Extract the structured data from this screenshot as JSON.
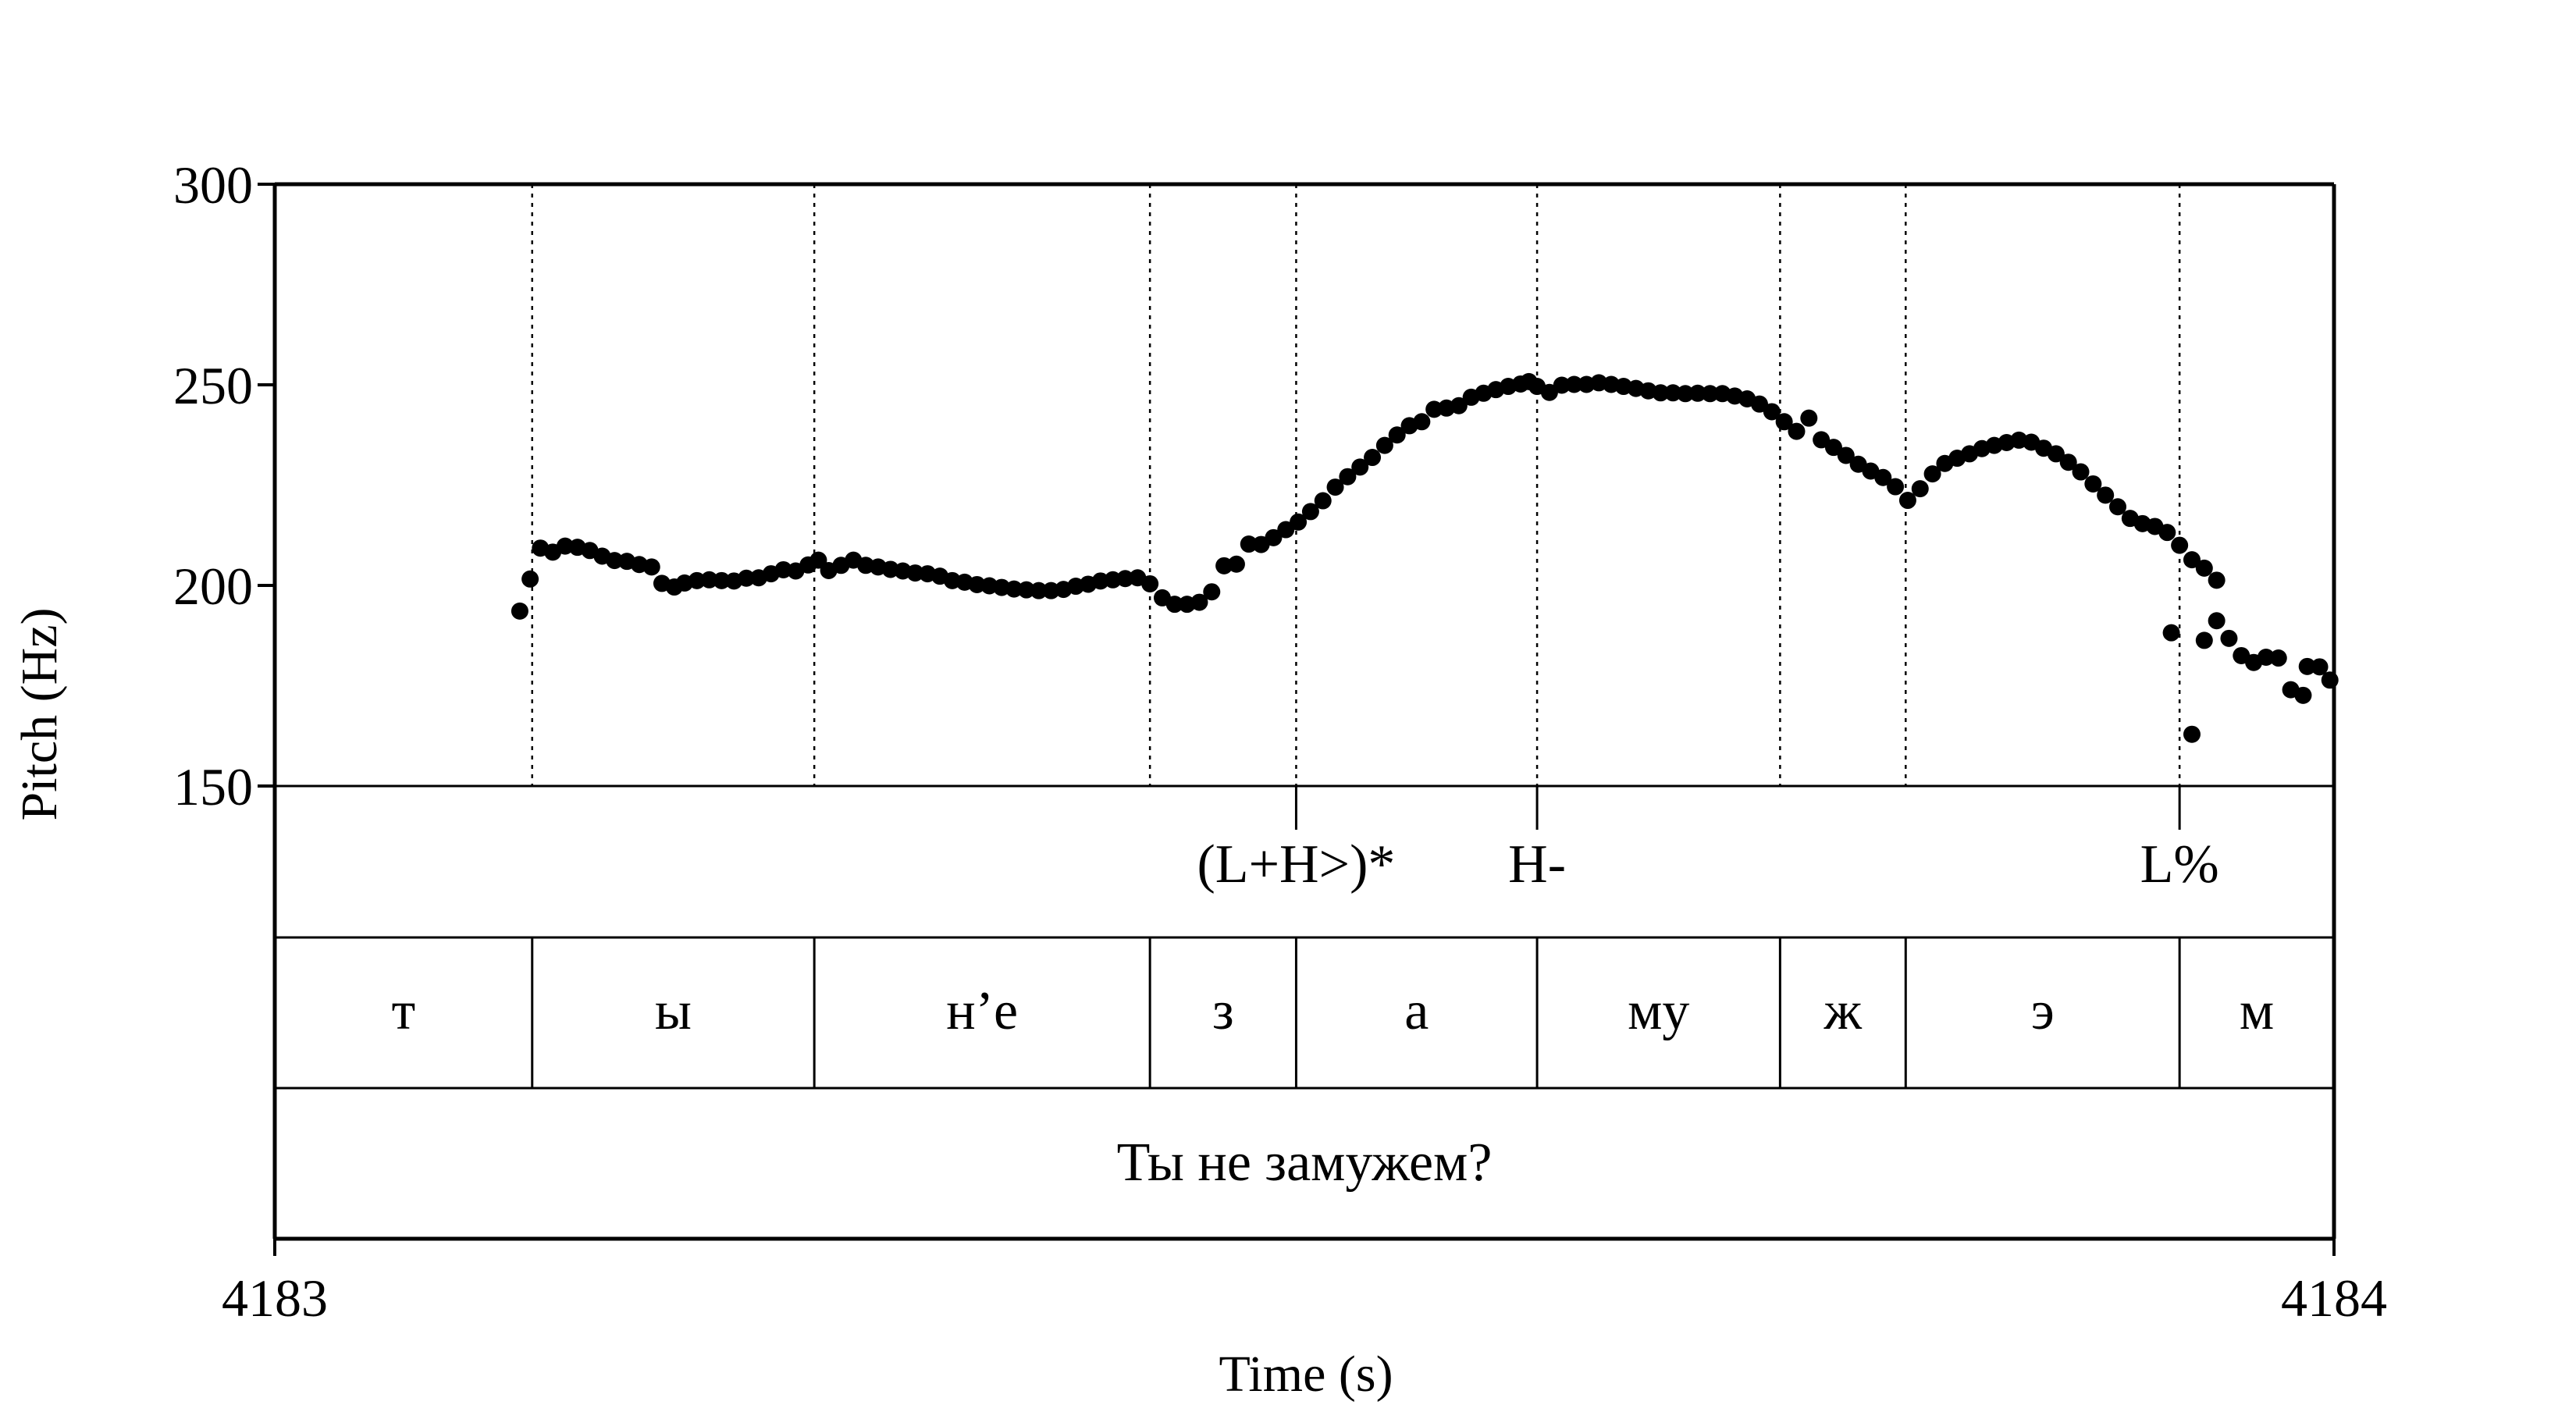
{
  "chart_data": {
    "type": "scatter",
    "ylabel": "Pitch (Hz)",
    "xlabel": "Time (s)",
    "xlim": [
      4183,
      4184
    ],
    "ylim": [
      150,
      300
    ],
    "yticks": [
      "150",
      "200",
      "250",
      "300"
    ],
    "xticks": [
      "4183",
      "4184"
    ],
    "grid": false,
    "marker_color": "#000000",
    "boundaries": [
      4183.125,
      4183.262,
      4183.425,
      4183.496,
      4183.613,
      4183.731,
      4183.792,
      4183.925
    ],
    "tone_tier": [
      {
        "t": 4183.496,
        "label": "(L+H>)*"
      },
      {
        "t": 4183.613,
        "label": "H-"
      },
      {
        "t": 4183.925,
        "label": "L%"
      }
    ],
    "segments": [
      {
        "start": 4183.0,
        "end": 4183.125,
        "label": "т"
      },
      {
        "start": 4183.125,
        "end": 4183.262,
        "label": "ы"
      },
      {
        "start": 4183.262,
        "end": 4183.425,
        "label": "н’е"
      },
      {
        "start": 4183.425,
        "end": 4183.496,
        "label": "з"
      },
      {
        "start": 4183.496,
        "end": 4183.613,
        "label": "а"
      },
      {
        "start": 4183.613,
        "end": 4183.731,
        "label": "му"
      },
      {
        "start": 4183.731,
        "end": 4183.792,
        "label": "ж"
      },
      {
        "start": 4183.792,
        "end": 4183.925,
        "label": "э"
      },
      {
        "start": 4183.925,
        "end": 4184.0,
        "label": "м"
      }
    ],
    "sentence": "Ты не замужем?",
    "points": [
      [
        4183.119,
        193.6
      ],
      [
        4183.124,
        201.6
      ],
      [
        4183.129,
        209.3
      ],
      [
        4183.135,
        208.3
      ],
      [
        4183.141,
        209.8
      ],
      [
        4183.147,
        209.5
      ],
      [
        4183.153,
        208.7
      ],
      [
        4183.159,
        207.3
      ],
      [
        4183.165,
        206.2
      ],
      [
        4183.171,
        206.0
      ],
      [
        4183.177,
        205.2
      ],
      [
        4183.183,
        204.6
      ],
      [
        4183.188,
        200.5
      ],
      [
        4183.194,
        199.6
      ],
      [
        4183.199,
        200.6
      ],
      [
        4183.205,
        201.2
      ],
      [
        4183.211,
        201.4
      ],
      [
        4183.217,
        201.2
      ],
      [
        4183.223,
        201.1
      ],
      [
        4183.229,
        201.8
      ],
      [
        4183.235,
        201.9
      ],
      [
        4183.241,
        202.9
      ],
      [
        4183.247,
        203.9
      ],
      [
        4183.253,
        203.6
      ],
      [
        4183.259,
        205.1
      ],
      [
        4183.264,
        206.3
      ],
      [
        4183.269,
        203.7
      ],
      [
        4183.275,
        205.0
      ],
      [
        4183.281,
        206.3
      ],
      [
        4183.287,
        205.0
      ],
      [
        4183.293,
        204.6
      ],
      [
        4183.299,
        204.0
      ],
      [
        4183.305,
        203.6
      ],
      [
        4183.311,
        203.1
      ],
      [
        4183.317,
        202.9
      ],
      [
        4183.323,
        202.3
      ],
      [
        4183.329,
        201.2
      ],
      [
        4183.335,
        200.8
      ],
      [
        4183.341,
        200.2
      ],
      [
        4183.347,
        199.9
      ],
      [
        4183.353,
        199.5
      ],
      [
        4183.359,
        199.1
      ],
      [
        4183.365,
        198.9
      ],
      [
        4183.371,
        198.7
      ],
      [
        4183.377,
        198.7
      ],
      [
        4183.383,
        199.0
      ],
      [
        4183.389,
        199.8
      ],
      [
        4183.395,
        200.3
      ],
      [
        4183.401,
        201.1
      ],
      [
        4183.407,
        201.4
      ],
      [
        4183.413,
        201.7
      ],
      [
        4183.419,
        201.9
      ],
      [
        4183.425,
        200.4
      ],
      [
        4183.431,
        196.9
      ],
      [
        4183.437,
        195.3
      ],
      [
        4183.443,
        195.3
      ],
      [
        4183.449,
        195.8
      ],
      [
        4183.455,
        198.4
      ],
      [
        4183.461,
        204.9
      ],
      [
        4183.467,
        205.3
      ],
      [
        4183.473,
        210.3
      ],
      [
        4183.479,
        210.2
      ],
      [
        4183.485,
        211.9
      ],
      [
        4183.491,
        213.9
      ],
      [
        4183.497,
        215.8
      ],
      [
        4183.503,
        218.4
      ],
      [
        4183.509,
        221.1
      ],
      [
        4183.515,
        224.5
      ],
      [
        4183.521,
        227.1
      ],
      [
        4183.527,
        229.5
      ],
      [
        4183.533,
        231.9
      ],
      [
        4183.539,
        234.9
      ],
      [
        4183.545,
        237.5
      ],
      [
        4183.551,
        239.8
      ],
      [
        4183.557,
        240.8
      ],
      [
        4183.563,
        243.9
      ],
      [
        4183.569,
        244.2
      ],
      [
        4183.575,
        244.8
      ],
      [
        4183.581,
        246.9
      ],
      [
        4183.587,
        247.9
      ],
      [
        4183.593,
        248.8
      ],
      [
        4183.599,
        249.6
      ],
      [
        4183.605,
        250.2
      ],
      [
        4183.609,
        250.8
      ],
      [
        4183.613,
        249.6
      ],
      [
        4183.619,
        248.1
      ],
      [
        4183.625,
        249.9
      ],
      [
        4183.631,
        250.1
      ],
      [
        4183.637,
        250.1
      ],
      [
        4183.643,
        250.5
      ],
      [
        4183.649,
        250.1
      ],
      [
        4183.655,
        249.6
      ],
      [
        4183.661,
        249.1
      ],
      [
        4183.667,
        248.5
      ],
      [
        4183.673,
        248.0
      ],
      [
        4183.679,
        248.0
      ],
      [
        4183.685,
        247.8
      ],
      [
        4183.691,
        247.9
      ],
      [
        4183.697,
        247.8
      ],
      [
        4183.703,
        247.8
      ],
      [
        4183.709,
        247.2
      ],
      [
        4183.715,
        246.5
      ],
      [
        4183.721,
        245.2
      ],
      [
        4183.727,
        243.3
      ],
      [
        4183.733,
        240.8
      ],
      [
        4183.739,
        238.4
      ],
      [
        4183.745,
        241.7
      ],
      [
        4183.751,
        236.3
      ],
      [
        4183.757,
        234.4
      ],
      [
        4183.763,
        232.4
      ],
      [
        4183.769,
        230.2
      ],
      [
        4183.775,
        228.5
      ],
      [
        4183.781,
        226.9
      ],
      [
        4183.787,
        224.6
      ],
      [
        4183.793,
        221.2
      ],
      [
        4183.799,
        224.1
      ],
      [
        4183.805,
        227.8
      ],
      [
        4183.811,
        230.4
      ],
      [
        4183.817,
        231.7
      ],
      [
        4183.823,
        232.8
      ],
      [
        4183.829,
        234.1
      ],
      [
        4183.835,
        234.9
      ],
      [
        4183.841,
        235.6
      ],
      [
        4183.847,
        236.2
      ],
      [
        4183.853,
        235.7
      ],
      [
        4183.859,
        234.2
      ],
      [
        4183.865,
        232.8
      ],
      [
        4183.871,
        230.7
      ],
      [
        4183.877,
        228.3
      ],
      [
        4183.883,
        225.3
      ],
      [
        4183.889,
        222.5
      ],
      [
        4183.895,
        219.6
      ],
      [
        4183.901,
        216.7
      ],
      [
        4183.907,
        215.4
      ],
      [
        4183.913,
        214.7
      ],
      [
        4183.919,
        213.2
      ],
      [
        4183.925,
        210.0
      ],
      [
        4183.931,
        206.4
      ],
      [
        4183.937,
        204.3
      ],
      [
        4183.943,
        201.3
      ],
      [
        4183.921,
        188.2
      ],
      [
        4183.931,
        162.9
      ],
      [
        4183.937,
        186.3
      ],
      [
        4183.943,
        191.2
      ],
      [
        4183.949,
        186.8
      ],
      [
        4183.955,
        182.5
      ],
      [
        4183.961,
        180.8
      ],
      [
        4183.967,
        182.1
      ],
      [
        4183.973,
        181.9
      ],
      [
        4183.979,
        174.0
      ],
      [
        4183.985,
        172.6
      ],
      [
        4183.987,
        179.8
      ],
      [
        4183.993,
        179.7
      ],
      [
        4183.998,
        176.4
      ]
    ]
  }
}
